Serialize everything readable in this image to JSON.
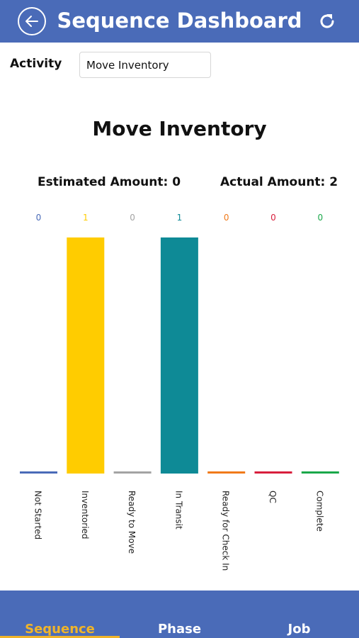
{
  "header": {
    "title": "Sequence Dashboard",
    "back_icon": "back-arrow-icon",
    "refresh_icon": "refresh-icon",
    "background": "#4a6bb8"
  },
  "activity": {
    "label": "Activity",
    "value": "Move Inventory"
  },
  "chart_title": "Move Inventory",
  "estimated": "Estimated Amount: 0",
  "actual": "Actual Amount: 2",
  "chart_data": {
    "type": "bar",
    "title": "Move Inventory",
    "categories": [
      "Not Started",
      "Inventoried",
      "Ready to Move",
      "In Transit",
      "Ready for Check In",
      "QC",
      "Complete"
    ],
    "values": [
      0,
      1,
      0,
      1,
      0,
      0,
      0
    ],
    "colors": [
      "#4a6bb8",
      "#ffcc00",
      "#a3a3a3",
      "#0e8a96",
      "#f07a1a",
      "#d81e3c",
      "#1aa84a"
    ],
    "ylim": [
      0,
      1
    ],
    "grid": false,
    "legend": "none"
  },
  "tabs": [
    {
      "label": "Sequence",
      "active": true
    },
    {
      "label": "Phase",
      "active": false
    },
    {
      "label": "Job",
      "active": false
    }
  ],
  "colors": {
    "accent": "#f0b429",
    "bar_bg": "#4a6bb8"
  }
}
